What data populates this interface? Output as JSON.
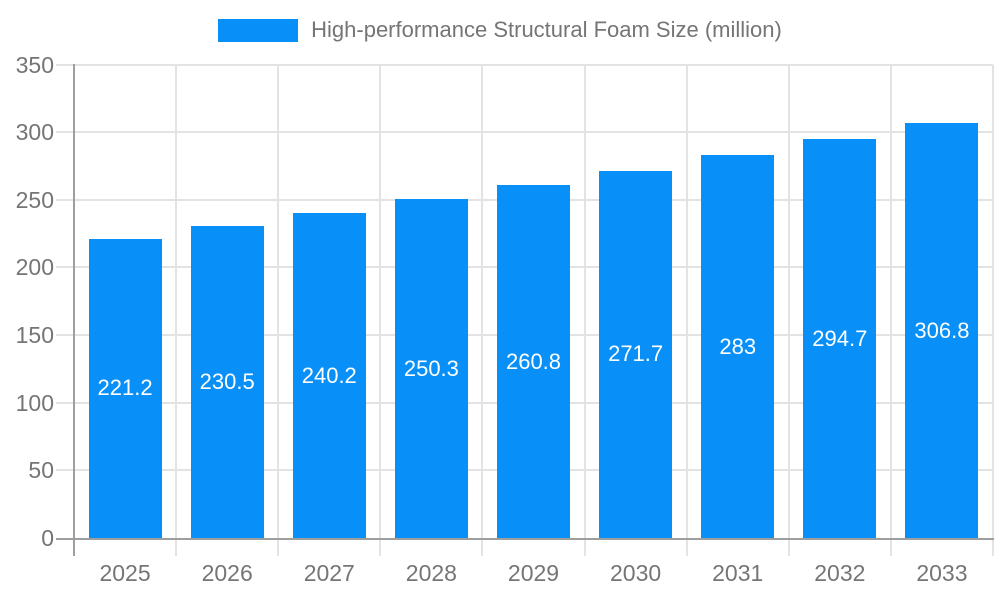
{
  "chart_data": {
    "type": "bar",
    "legend_label": "High-performance Structural Foam Size (million)",
    "categories": [
      "2025",
      "2026",
      "2027",
      "2028",
      "2029",
      "2030",
      "2031",
      "2032",
      "2033"
    ],
    "values": [
      221.2,
      230.5,
      240.2,
      250.3,
      260.8,
      271.7,
      283,
      294.7,
      306.8
    ],
    "value_labels": [
      "221.2",
      "230.5",
      "240.2",
      "250.3",
      "260.8",
      "271.7",
      "283",
      "294.7",
      "306.8"
    ],
    "ylim": [
      0,
      350
    ],
    "yticks": [
      0,
      50,
      100,
      150,
      200,
      250,
      300,
      350
    ],
    "ytick_labels": [
      "0",
      "50",
      "100",
      "150",
      "200",
      "250",
      "300",
      "350"
    ],
    "grid": true,
    "legend_position": "top",
    "colors": {
      "bar": "#0890f8",
      "grid": "#e3e3e3",
      "axis": "#9e9e9e",
      "tick_text": "#757575",
      "value_text": "#ffffff",
      "background": "#ffffff"
    }
  }
}
